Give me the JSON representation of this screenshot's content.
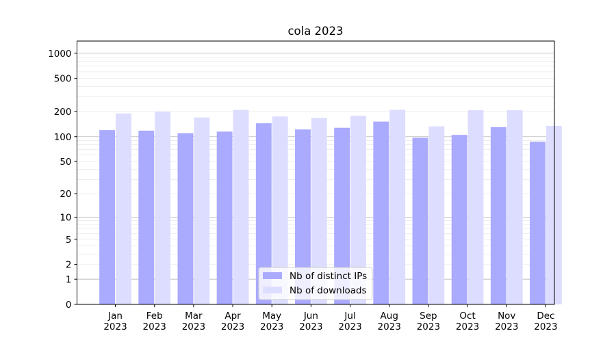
{
  "chart_data": {
    "type": "bar",
    "title": "cola 2023",
    "xlabel": "",
    "ylabel": "",
    "yscale": "log(1+y)",
    "ylim": [
      0,
      1400
    ],
    "yticks": [
      0,
      1,
      2,
      5,
      10,
      20,
      50,
      100,
      200,
      500,
      1000
    ],
    "grid": true,
    "legend_position": "lower center",
    "categories": [
      [
        "Jan",
        "2023"
      ],
      [
        "Feb",
        "2023"
      ],
      [
        "Mar",
        "2023"
      ],
      [
        "Apr",
        "2023"
      ],
      [
        "May",
        "2023"
      ],
      [
        "Jun",
        "2023"
      ],
      [
        "Jul",
        "2023"
      ],
      [
        "Aug",
        "2023"
      ],
      [
        "Sep",
        "2023"
      ],
      [
        "Oct",
        "2023"
      ],
      [
        "Nov",
        "2023"
      ],
      [
        "Dec",
        "2023"
      ]
    ],
    "series": [
      {
        "name": "Nb of distinct IPs",
        "color": "#aaaaff",
        "values": [
          120,
          118,
          110,
          115,
          145,
          122,
          128,
          152,
          97,
          105,
          130,
          87
        ]
      },
      {
        "name": "Nb of downloads",
        "color": "#ddddff",
        "values": [
          190,
          200,
          170,
          210,
          175,
          168,
          178,
          210,
          133,
          208,
          208,
          135
        ]
      }
    ]
  }
}
